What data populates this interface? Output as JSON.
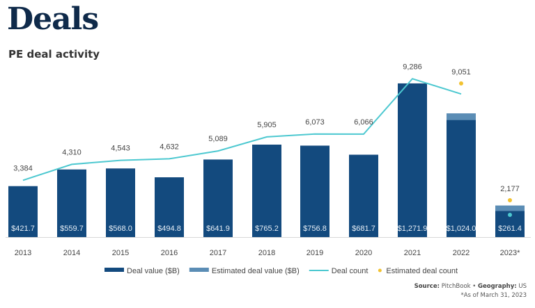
{
  "header": {
    "title": "Deals",
    "subtitle": "PE deal activity"
  },
  "chart_data": {
    "type": "bar",
    "title": "PE deal activity",
    "categories": [
      "2013",
      "2014",
      "2015",
      "2016",
      "2017",
      "2018",
      "2019",
      "2020",
      "2021",
      "2022",
      "2023*"
    ],
    "series": [
      {
        "name": "Deal value ($B)",
        "type": "bar",
        "color": "#134a7e",
        "values": [
          421.7,
          559.7,
          568.0,
          494.8,
          641.9,
          765.2,
          756.8,
          681.7,
          1271.9,
          1024.0,
          261.4
        ],
        "labels": [
          "$421.7",
          "$559.7",
          "$568.0",
          "$494.8",
          "$641.9",
          "$765.2",
          "$756.8",
          "$681.7",
          "$1,271.9",
          "$1,024.0",
          "$261.4"
        ]
      },
      {
        "name": "Estimated deal value ($B)",
        "type": "bar-stacked",
        "color": "#5b8db5",
        "values": [
          0,
          0,
          0,
          0,
          0,
          0,
          0,
          0,
          0,
          55,
          45
        ]
      },
      {
        "name": "Deal count",
        "type": "line",
        "color": "#4cc8d0",
        "values": [
          3384,
          4310,
          4543,
          4632,
          5089,
          5905,
          6073,
          6066,
          9286,
          8400,
          1250
        ],
        "labels": [
          "3,384",
          "4,310",
          "4,543",
          "4,632",
          "5,089",
          "5,905",
          "6,073",
          "6,066",
          "9,286",
          null,
          null
        ]
      },
      {
        "name": "Estimated deal count",
        "type": "scatter",
        "color": "#f2c230",
        "values": [
          null,
          null,
          null,
          null,
          null,
          null,
          null,
          null,
          null,
          9051,
          2177
        ],
        "labels": [
          null,
          null,
          null,
          null,
          null,
          null,
          null,
          null,
          null,
          "9,051",
          "2,177"
        ]
      }
    ],
    "xlabel": "",
    "ylabel": "",
    "legend": "bottom-center",
    "grid": false
  },
  "legend": [
    {
      "label": "Deal value ($B)",
      "kind": "bar",
      "color": "#134a7e"
    },
    {
      "label": "Estimated deal value ($B)",
      "kind": "bar",
      "color": "#5b8db5"
    },
    {
      "label": "Deal count",
      "kind": "line",
      "color": "#4cc8d0"
    },
    {
      "label": "Estimated deal count",
      "kind": "dot",
      "color": "#f2c230"
    }
  ],
  "footer": {
    "source_label": "Source:",
    "source_value": "PitchBook",
    "separator": "•",
    "geo_label": "Geography:",
    "geo_value": "US",
    "note": "*As of March 31, 2023"
  }
}
